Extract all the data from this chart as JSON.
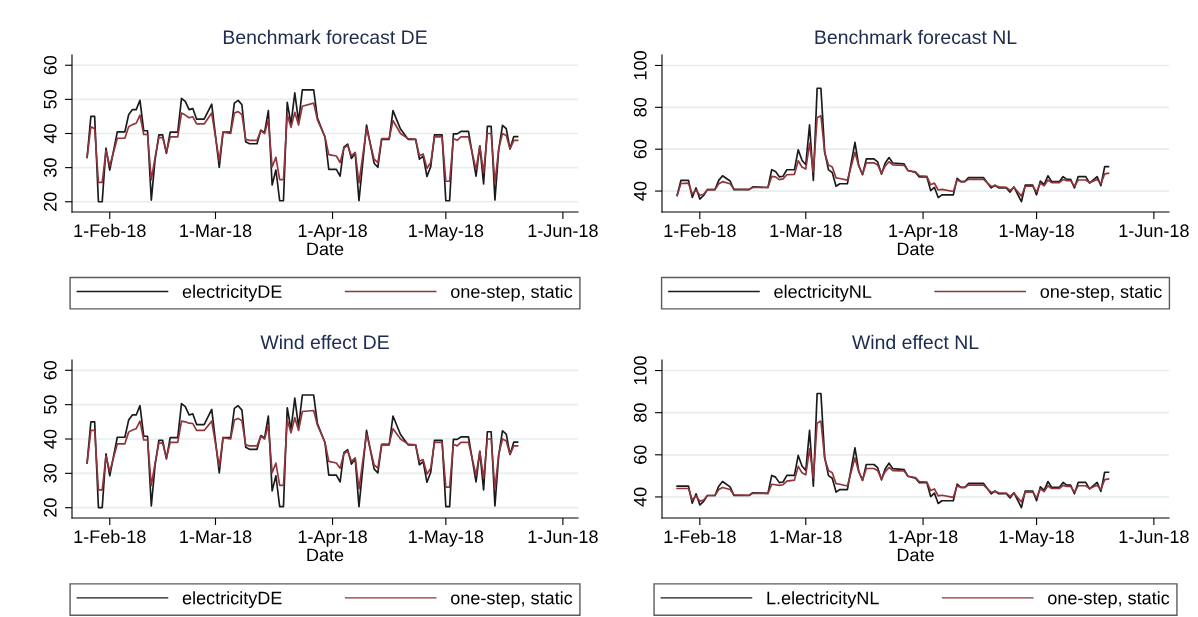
{
  "chart_data": [
    {
      "type": "line",
      "title": "Benchmark forecast DE",
      "xlabel": "Date",
      "x": [
        "2018-01-26",
        "2018-01-27",
        "2018-01-28",
        "2018-01-29",
        "2018-01-30",
        "2018-01-31",
        "2018-02-01",
        "2018-02-03",
        "2018-02-05",
        "2018-02-06",
        "2018-02-07",
        "2018-02-08",
        "2018-02-09",
        "2018-02-10",
        "2018-02-11",
        "2018-02-12",
        "2018-02-13",
        "2018-02-14",
        "2018-02-15",
        "2018-02-16",
        "2018-02-17",
        "2018-02-19",
        "2018-02-20",
        "2018-02-21",
        "2018-02-22",
        "2018-02-23",
        "2018-02-24",
        "2018-02-26",
        "2018-02-28",
        "2018-03-02",
        "2018-03-03",
        "2018-03-05",
        "2018-03-06",
        "2018-03-07",
        "2018-03-08",
        "2018-03-09",
        "2018-03-10",
        "2018-03-12",
        "2018-03-13",
        "2018-03-14",
        "2018-03-15",
        "2018-03-16",
        "2018-03-17",
        "2018-03-18",
        "2018-03-19",
        "2018-03-20",
        "2018-03-21",
        "2018-03-22",
        "2018-03-23",
        "2018-03-24",
        "2018-03-27",
        "2018-03-28",
        "2018-03-30",
        "2018-03-31",
        "2018-04-02",
        "2018-04-03",
        "2018-04-04",
        "2018-04-05",
        "2018-04-06",
        "2018-04-07",
        "2018-04-08",
        "2018-04-10",
        "2018-04-12",
        "2018-04-13",
        "2018-04-14",
        "2018-04-16",
        "2018-04-17",
        "2018-04-19",
        "2018-04-21",
        "2018-04-23",
        "2018-04-24",
        "2018-04-25",
        "2018-04-26",
        "2018-04-27",
        "2018-04-28",
        "2018-04-30",
        "2018-05-01",
        "2018-05-02",
        "2018-05-03",
        "2018-05-04",
        "2018-05-05",
        "2018-05-07",
        "2018-05-09",
        "2018-05-10",
        "2018-05-11",
        "2018-05-12",
        "2018-05-13",
        "2018-05-14",
        "2018-05-15",
        "2018-05-16",
        "2018-05-17",
        "2018-05-18",
        "2018-05-19",
        "2018-05-20"
      ],
      "series": [
        {
          "name": "electricityDE",
          "color": "#1a1a1a",
          "values": [
            33,
            45,
            45,
            20,
            20,
            35.7,
            29.3,
            40.5,
            40.5,
            45.5,
            47,
            47,
            49.7,
            40.8,
            40.8,
            20.5,
            32.3,
            39.6,
            39.6,
            34.2,
            40.4,
            40.4,
            50.3,
            49.4,
            47,
            47.3,
            44.2,
            44.2,
            48.6,
            30.1,
            40.4,
            40.4,
            48.9,
            49.7,
            48.4,
            37.6,
            37,
            37,
            41,
            40.3,
            46.7,
            24.9,
            29.3,
            20.3,
            20.3,
            49.1,
            42.8,
            51.9,
            43.5,
            52.8,
            52.8,
            44.5,
            38.9,
            29.5,
            29.5,
            27.5,
            36,
            36.9,
            32.7,
            34.2,
            20.3,
            42.5,
            31.3,
            30.1,
            38.3,
            38.3,
            46.7,
            41.3,
            38.3,
            38.3,
            32.5,
            33.4,
            27.4,
            30.3,
            39.6,
            39.6,
            20.3,
            20.3,
            39.9,
            39.9,
            40.6,
            40.6,
            27.5,
            36.4,
            25.2,
            42.1,
            42.1,
            20.5,
            35.2,
            42.4,
            41.4,
            35.5,
            39.1,
            39.1
          ]
        },
        {
          "name": "one-step, static",
          "color": "#90353b",
          "values": [
            33,
            42,
            41.4,
            25.7,
            25.7,
            35,
            30.5,
            38.6,
            38.6,
            42,
            42.6,
            43,
            45.4,
            39.7,
            39.7,
            26.5,
            33,
            38.8,
            38.8,
            34.5,
            39,
            39,
            46,
            45.4,
            44.6,
            44.9,
            42.8,
            42.8,
            46,
            32,
            40.4,
            40,
            46,
            46.4,
            45.5,
            38.3,
            38,
            38,
            40.8,
            40,
            44,
            30.2,
            33,
            26.5,
            26.5,
            45.5,
            41.8,
            46.2,
            42.5,
            48,
            48.9,
            44,
            39,
            33.8,
            33.4,
            31.5,
            35.7,
            36.5,
            33.5,
            34.5,
            25.5,
            41.5,
            32.5,
            31.5,
            38.5,
            38.5,
            43.8,
            40,
            38.5,
            38.3,
            33.5,
            34,
            29.8,
            31.5,
            39,
            39,
            26,
            26,
            38.5,
            38,
            39,
            39,
            29.5,
            36.4,
            28.5,
            40,
            40,
            25.5,
            35.5,
            40,
            39.4,
            35.5,
            38,
            38
          ]
        }
      ],
      "xlim": [
        "2018-01-22",
        "2018-06-05"
      ],
      "xticks": [
        {
          "value": "2018-02-01",
          "label": "1-Feb-18"
        },
        {
          "value": "2018-03-01",
          "label": "1-Mar-18"
        },
        {
          "value": "2018-04-01",
          "label": "1-Apr-18"
        },
        {
          "value": "2018-05-01",
          "label": "1-May-18"
        },
        {
          "value": "2018-06-01",
          "label": "1-Jun-18"
        }
      ],
      "ylim": [
        17,
        63
      ],
      "yticks": [
        20,
        30,
        40,
        50,
        60
      ],
      "grid": "y",
      "legend": "bottom"
    },
    {
      "type": "line",
      "title": "Benchmark forecast NL",
      "xlabel": "Date",
      "x": [
        "2018-01-26",
        "2018-01-27",
        "2018-01-29",
        "2018-01-30",
        "2018-01-31",
        "2018-02-01",
        "2018-02-02",
        "2018-02-03",
        "2018-02-05",
        "2018-02-06",
        "2018-02-07",
        "2018-02-09",
        "2018-02-10",
        "2018-02-14",
        "2018-02-15",
        "2018-02-19",
        "2018-02-20",
        "2018-02-21",
        "2018-02-22",
        "2018-02-23",
        "2018-02-24",
        "2018-02-26",
        "2018-02-27",
        "2018-02-28",
        "2018-03-01",
        "2018-03-02",
        "2018-03-03",
        "2018-03-04",
        "2018-03-05",
        "2018-03-06",
        "2018-03-07",
        "2018-03-08",
        "2018-03-09",
        "2018-03-10",
        "2018-03-12",
        "2018-03-14",
        "2018-03-15",
        "2018-03-16",
        "2018-03-17",
        "2018-03-19",
        "2018-03-20",
        "2018-03-21",
        "2018-03-22",
        "2018-03-23",
        "2018-03-24",
        "2018-03-27",
        "2018-03-28",
        "2018-03-30",
        "2018-03-31",
        "2018-04-02",
        "2018-04-03",
        "2018-04-04",
        "2018-04-05",
        "2018-04-06",
        "2018-04-09",
        "2018-04-10",
        "2018-04-11",
        "2018-04-12",
        "2018-04-13",
        "2018-04-17",
        "2018-04-19",
        "2018-04-20",
        "2018-04-21",
        "2018-04-23",
        "2018-04-24",
        "2018-04-25",
        "2018-04-27",
        "2018-04-28",
        "2018-04-30",
        "2018-05-01",
        "2018-05-02",
        "2018-05-03",
        "2018-05-04",
        "2018-05-05",
        "2018-05-07",
        "2018-05-08",
        "2018-05-09",
        "2018-05-10",
        "2018-05-11",
        "2018-05-12",
        "2018-05-14",
        "2018-05-15",
        "2018-05-17",
        "2018-05-18",
        "2018-05-19",
        "2018-05-20"
      ],
      "series": [
        {
          "name": "electricityNL",
          "color": "#1a1a1a",
          "values": [
            37.9,
            45.1,
            45.1,
            37,
            41.5,
            36.2,
            37.9,
            40.7,
            40.7,
            45.1,
            47.3,
            44.8,
            40.7,
            40.7,
            42,
            41.7,
            50.2,
            49.4,
            46.8,
            47.1,
            50.2,
            50.2,
            59.7,
            54.7,
            52.6,
            71.6,
            45.1,
            89.1,
            89.1,
            58.8,
            50.1,
            48.9,
            42.3,
            43.5,
            43.5,
            63.3,
            52.2,
            47.8,
            55.4,
            55.4,
            53.9,
            48.1,
            53.4,
            56,
            53.4,
            53,
            49.8,
            48.9,
            46.8,
            46.8,
            40.2,
            41.8,
            36.9,
            38.2,
            38.2,
            46.1,
            44.5,
            44.5,
            46.4,
            46.4,
            41.5,
            42.8,
            41.5,
            41.5,
            39.5,
            42,
            34.9,
            42.8,
            42.8,
            38.2,
            44.8,
            43.1,
            47.3,
            44.5,
            44.5,
            46.9,
            45.6,
            45.6,
            41.5,
            46.9,
            46.9,
            43.8,
            46.9,
            42.6,
            51.7,
            51.7
          ]
        },
        {
          "name": "one-step, static",
          "color": "#90353b",
          "values": [
            37.9,
            43.6,
            43.8,
            38.5,
            40.5,
            38,
            38.5,
            40.7,
            40.7,
            43.5,
            44.5,
            43.5,
            41,
            40.8,
            41.7,
            41.7,
            47,
            46.8,
            45.5,
            45.8,
            47.8,
            48,
            54.5,
            51.5,
            50.5,
            62.8,
            49,
            75,
            76,
            58.2,
            52.5,
            51.5,
            46.3,
            46,
            45.2,
            58.5,
            52,
            48,
            53.5,
            53.5,
            52.5,
            48.5,
            52,
            54,
            52.5,
            52.3,
            49.8,
            49.2,
            47.3,
            47,
            43,
            43.8,
            40.5,
            40.8,
            39.8,
            45.3,
            44.5,
            44.5,
            45.6,
            45.6,
            42.2,
            42.6,
            42,
            41.8,
            40.3,
            41.8,
            37.6,
            42.3,
            42.3,
            39.5,
            43.8,
            42.5,
            45.3,
            44,
            44,
            45.5,
            45,
            45,
            42.3,
            45.3,
            45.3,
            44,
            45.5,
            43.5,
            48.2,
            48.5
          ]
        }
      ],
      "xlim": [
        "2018-01-22",
        "2018-06-05"
      ],
      "xticks": [
        {
          "value": "2018-02-01",
          "label": "1-Feb-18"
        },
        {
          "value": "2018-03-01",
          "label": "1-Mar-18"
        },
        {
          "value": "2018-04-01",
          "label": "1-Apr-18"
        },
        {
          "value": "2018-05-01",
          "label": "1-May-18"
        },
        {
          "value": "2018-06-01",
          "label": "1-Jun-18"
        }
      ],
      "ylim": [
        30,
        105
      ],
      "yticks": [
        40,
        60,
        80,
        100
      ],
      "grid": "y",
      "legend": "bottom"
    },
    {
      "type": "line",
      "title": "Wind effect DE",
      "xlabel": "Date",
      "x": [
        "2018-01-26",
        "2018-01-27",
        "2018-01-28",
        "2018-01-29",
        "2018-01-30",
        "2018-01-31",
        "2018-02-01",
        "2018-02-03",
        "2018-02-05",
        "2018-02-06",
        "2018-02-07",
        "2018-02-08",
        "2018-02-09",
        "2018-02-10",
        "2018-02-11",
        "2018-02-12",
        "2018-02-13",
        "2018-02-14",
        "2018-02-15",
        "2018-02-16",
        "2018-02-17",
        "2018-02-19",
        "2018-02-20",
        "2018-02-21",
        "2018-02-22",
        "2018-02-23",
        "2018-02-24",
        "2018-02-26",
        "2018-02-28",
        "2018-03-02",
        "2018-03-03",
        "2018-03-05",
        "2018-03-06",
        "2018-03-07",
        "2018-03-08",
        "2018-03-09",
        "2018-03-10",
        "2018-03-12",
        "2018-03-13",
        "2018-03-14",
        "2018-03-15",
        "2018-03-16",
        "2018-03-17",
        "2018-03-18",
        "2018-03-19",
        "2018-03-20",
        "2018-03-21",
        "2018-03-22",
        "2018-03-23",
        "2018-03-24",
        "2018-03-27",
        "2018-03-28",
        "2018-03-30",
        "2018-03-31",
        "2018-04-02",
        "2018-04-03",
        "2018-04-04",
        "2018-04-05",
        "2018-04-06",
        "2018-04-07",
        "2018-04-08",
        "2018-04-10",
        "2018-04-12",
        "2018-04-13",
        "2018-04-14",
        "2018-04-16",
        "2018-04-17",
        "2018-04-19",
        "2018-04-21",
        "2018-04-23",
        "2018-04-24",
        "2018-04-25",
        "2018-04-26",
        "2018-04-27",
        "2018-04-28",
        "2018-04-30",
        "2018-05-01",
        "2018-05-02",
        "2018-05-03",
        "2018-05-04",
        "2018-05-05",
        "2018-05-07",
        "2018-05-09",
        "2018-05-10",
        "2018-05-11",
        "2018-05-12",
        "2018-05-13",
        "2018-05-14",
        "2018-05-15",
        "2018-05-16",
        "2018-05-17",
        "2018-05-18",
        "2018-05-19",
        "2018-05-20"
      ],
      "series": [
        {
          "name": "electricityDE",
          "color": "#1a1a1a",
          "values": [
            33,
            45,
            45,
            20,
            20,
            35.7,
            29.3,
            40.5,
            40.5,
            45.5,
            47,
            47,
            49.7,
            40.8,
            40.8,
            20.5,
            32.3,
            39.6,
            39.6,
            34.2,
            40.4,
            40.4,
            50.3,
            49.4,
            47,
            47.3,
            44.2,
            44.2,
            48.6,
            30.1,
            40.4,
            40.4,
            48.9,
            49.7,
            48.4,
            37.6,
            37,
            37,
            41,
            40.3,
            46.7,
            24.9,
            29.3,
            20.3,
            20.3,
            49.1,
            42.8,
            51.9,
            43.5,
            52.8,
            52.8,
            44.5,
            38.9,
            29.5,
            29.5,
            27.5,
            36,
            36.9,
            32.7,
            34.2,
            20.3,
            42.5,
            31.3,
            30.1,
            38.3,
            38.3,
            46.7,
            41.3,
            38.3,
            38.3,
            32.5,
            33.4,
            27.4,
            30.3,
            39.6,
            39.6,
            20.3,
            20.3,
            39.9,
            39.9,
            40.6,
            40.6,
            27.5,
            36.4,
            25.2,
            42.1,
            42.1,
            20.5,
            35.2,
            42.4,
            41.4,
            35.5,
            39.1,
            39.1
          ]
        },
        {
          "name": "one-step, static",
          "color": "#90353b",
          "values": [
            33,
            42.5,
            42.5,
            25.2,
            25.2,
            35,
            30.5,
            38.6,
            38.6,
            42,
            42.6,
            43,
            45.2,
            39.7,
            39.7,
            26.5,
            33,
            38.8,
            38.8,
            34.5,
            39,
            39,
            45.2,
            45,
            44.6,
            44.5,
            42.5,
            42.5,
            45.2,
            32,
            40.4,
            40,
            45.5,
            46,
            45.3,
            38.3,
            38,
            38,
            40.8,
            40,
            44,
            30.2,
            33,
            26.5,
            26.5,
            45.5,
            41.8,
            46.2,
            42.5,
            48,
            48.3,
            44,
            39,
            33.5,
            33,
            31.5,
            35.7,
            36.5,
            33.5,
            34.5,
            25.5,
            41.5,
            32.5,
            31.5,
            38.5,
            38.5,
            43,
            40,
            38.5,
            38.3,
            33.5,
            34,
            29.8,
            31.5,
            39,
            39,
            26,
            26,
            38.5,
            38,
            39,
            39,
            29.5,
            36.4,
            28.5,
            40,
            40,
            25.5,
            35.5,
            40,
            39.4,
            35.5,
            38,
            38
          ]
        }
      ],
      "xlim": [
        "2018-01-22",
        "2018-06-05"
      ],
      "xticks": [
        {
          "value": "2018-02-01",
          "label": "1-Feb-18"
        },
        {
          "value": "2018-03-01",
          "label": "1-Mar-18"
        },
        {
          "value": "2018-04-01",
          "label": "1-Apr-18"
        },
        {
          "value": "2018-05-01",
          "label": "1-May-18"
        },
        {
          "value": "2018-06-01",
          "label": "1-Jun-18"
        }
      ],
      "ylim": [
        17,
        63
      ],
      "yticks": [
        20,
        30,
        40,
        50,
        60
      ],
      "grid": "y",
      "legend": "bottom"
    },
    {
      "type": "line",
      "title": "Wind effect NL",
      "xlabel": "Date",
      "x": [
        "2018-01-26",
        "2018-01-27",
        "2018-01-29",
        "2018-01-30",
        "2018-01-31",
        "2018-02-01",
        "2018-02-02",
        "2018-02-03",
        "2018-02-05",
        "2018-02-06",
        "2018-02-07",
        "2018-02-09",
        "2018-02-10",
        "2018-02-14",
        "2018-02-15",
        "2018-02-19",
        "2018-02-20",
        "2018-02-21",
        "2018-02-22",
        "2018-02-23",
        "2018-02-24",
        "2018-02-26",
        "2018-02-27",
        "2018-02-28",
        "2018-03-01",
        "2018-03-02",
        "2018-03-03",
        "2018-03-04",
        "2018-03-05",
        "2018-03-06",
        "2018-03-07",
        "2018-03-08",
        "2018-03-09",
        "2018-03-10",
        "2018-03-12",
        "2018-03-14",
        "2018-03-15",
        "2018-03-16",
        "2018-03-17",
        "2018-03-19",
        "2018-03-20",
        "2018-03-21",
        "2018-03-22",
        "2018-03-23",
        "2018-03-24",
        "2018-03-27",
        "2018-03-28",
        "2018-03-30",
        "2018-03-31",
        "2018-04-02",
        "2018-04-03",
        "2018-04-04",
        "2018-04-05",
        "2018-04-06",
        "2018-04-09",
        "2018-04-10",
        "2018-04-11",
        "2018-04-12",
        "2018-04-13",
        "2018-04-17",
        "2018-04-19",
        "2018-04-20",
        "2018-04-21",
        "2018-04-23",
        "2018-04-24",
        "2018-04-25",
        "2018-04-27",
        "2018-04-28",
        "2018-04-30",
        "2018-05-01",
        "2018-05-02",
        "2018-05-03",
        "2018-05-04",
        "2018-05-05",
        "2018-05-07",
        "2018-05-08",
        "2018-05-09",
        "2018-05-10",
        "2018-05-11",
        "2018-05-12",
        "2018-05-14",
        "2018-05-15",
        "2018-05-17",
        "2018-05-18",
        "2018-05-19",
        "2018-05-20"
      ],
      "series": [
        {
          "name": "L.electricityNL",
          "color": "#1a1a1a",
          "values": [
            45.1,
            45.1,
            45.1,
            37,
            41.5,
            36.2,
            37.9,
            40.7,
            40.7,
            45.1,
            47.3,
            44.8,
            40.7,
            40.7,
            42,
            41.7,
            50.2,
            49.4,
            46.8,
            47.1,
            50.2,
            50.2,
            59.7,
            54.7,
            52.6,
            71.6,
            45.1,
            89.1,
            89.1,
            58.8,
            50.1,
            48.9,
            42.3,
            43.5,
            43.5,
            63.3,
            52.2,
            47.8,
            55.4,
            55.4,
            53.9,
            48.1,
            53.4,
            56,
            53.4,
            53,
            49.8,
            48.9,
            46.8,
            46.8,
            40.2,
            41.8,
            36.9,
            38.2,
            38.2,
            46.1,
            44.5,
            44.5,
            46.4,
            46.4,
            41.5,
            42.8,
            41.5,
            41.5,
            39.5,
            42,
            34.9,
            42.8,
            42.8,
            38.2,
            44.8,
            43.1,
            47.3,
            44.5,
            44.5,
            46.9,
            45.6,
            45.6,
            41.5,
            46.9,
            46.9,
            43.8,
            46.9,
            42.6,
            51.7,
            51.7
          ]
        },
        {
          "name": "one-step, static",
          "color": "#90353b",
          "values": [
            44,
            44,
            44,
            38.5,
            40.5,
            38,
            38.5,
            40.7,
            40.7,
            43.5,
            44.5,
            43.5,
            41,
            40.8,
            41.7,
            41.7,
            46,
            45.8,
            45.5,
            45.8,
            47.5,
            48,
            54.5,
            51.5,
            50.5,
            62.8,
            49,
            75,
            76,
            58.2,
            52.5,
            51.5,
            46.3,
            46,
            45.2,
            58.5,
            52,
            48,
            53.5,
            53.5,
            52.5,
            48.5,
            52,
            54,
            52.5,
            52.3,
            49.8,
            49.2,
            47.3,
            47,
            43,
            43.8,
            40.5,
            40.8,
            39.8,
            45.3,
            44.5,
            44.5,
            45.6,
            45.6,
            42.2,
            42.6,
            42,
            41.8,
            40.3,
            41.8,
            37.6,
            42.3,
            42.3,
            39.5,
            43.8,
            42.5,
            45.3,
            44,
            44,
            45.5,
            45,
            45,
            42.3,
            45.3,
            45.3,
            44,
            45.5,
            43.5,
            48.2,
            48.5
          ]
        }
      ],
      "xlim": [
        "2018-01-22",
        "2018-06-05"
      ],
      "xticks": [
        {
          "value": "2018-02-01",
          "label": "1-Feb-18"
        },
        {
          "value": "2018-03-01",
          "label": "1-Mar-18"
        },
        {
          "value": "2018-04-01",
          "label": "1-Apr-18"
        },
        {
          "value": "2018-05-01",
          "label": "1-May-18"
        },
        {
          "value": "2018-06-01",
          "label": "1-Jun-18"
        }
      ],
      "ylim": [
        30,
        105
      ],
      "yticks": [
        40,
        60,
        80,
        100
      ],
      "grid": "y",
      "legend": "bottom"
    }
  ]
}
